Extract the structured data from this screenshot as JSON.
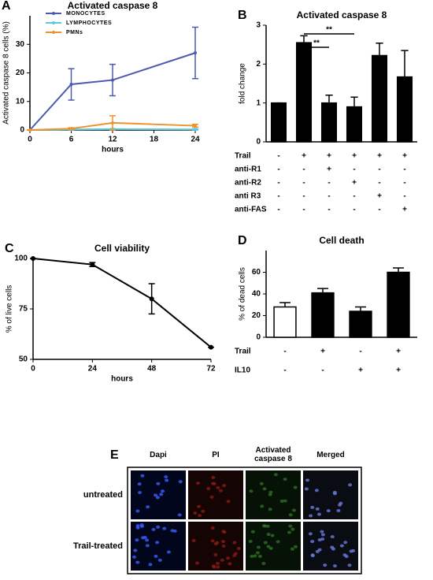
{
  "chart_data": [
    {
      "type": "line",
      "panel": "A",
      "title": "Activated caspase 8",
      "xlabel": "hours",
      "ylabel": "Activated caspase 8 cells (%)",
      "x": [
        0,
        6,
        12,
        24
      ],
      "xlim": [
        0,
        24
      ],
      "xticks": [
        0,
        6,
        12,
        18,
        24
      ],
      "ylim": [
        0,
        40
      ],
      "yticks": [
        0,
        10,
        20,
        30
      ],
      "series": [
        {
          "name": "MONOCYTES",
          "color": "#4a5ab0",
          "values": [
            0,
            16,
            17.5,
            27
          ],
          "errors": [
            0,
            5.5,
            5.5,
            9
          ]
        },
        {
          "name": "LYMPHOCYTES",
          "color": "#5bc8e0",
          "values": [
            0,
            0.2,
            0.3,
            0.2
          ],
          "errors": [
            0,
            0.2,
            0.2,
            0.2
          ]
        },
        {
          "name": "PMNs",
          "color": "#f0922a",
          "values": [
            0,
            0.5,
            2.5,
            1.5
          ],
          "errors": [
            0,
            0.3,
            2.5,
            0.5
          ]
        }
      ]
    },
    {
      "type": "bar",
      "panel": "B",
      "title": "Activated caspase 8",
      "ylabel": "fold change",
      "values": [
        1,
        2.55,
        1.0,
        0.9,
        2.22,
        1.67
      ],
      "errors": [
        0,
        0.18,
        0.2,
        0.25,
        0.32,
        0.68
      ],
      "color": "#000000",
      "ylim": [
        0,
        3
      ],
      "yticks": [
        0,
        1,
        2,
        3
      ],
      "significance": [
        {
          "label": "**",
          "categories": [
            1,
            2
          ]
        },
        {
          "label": "**",
          "categories": [
            1,
            3
          ]
        }
      ],
      "conditions": [
        {
          "name": "Trail",
          "values": [
            "-",
            "+",
            "+",
            "+",
            "+",
            "+"
          ]
        },
        {
          "name": "anti-R1",
          "values": [
            "-",
            "-",
            "+",
            "-",
            "-",
            "-"
          ]
        },
        {
          "name": "anti-R2",
          "values": [
            "-",
            "-",
            "-",
            "+",
            "-",
            "-"
          ]
        },
        {
          "name": "anti R3",
          "values": [
            "-",
            "-",
            "-",
            "-",
            "+",
            "-"
          ]
        },
        {
          "name": "anti-FAS",
          "values": [
            "-",
            "-",
            "-",
            "-",
            "-",
            "+"
          ]
        }
      ]
    },
    {
      "type": "line",
      "panel": "C",
      "title": "Cell viability",
      "xlabel": "hours",
      "ylabel": "% of live cells",
      "x": [
        0,
        24,
        48,
        72
      ],
      "xlim": [
        0,
        72
      ],
      "xticks": [
        0,
        24,
        48,
        72
      ],
      "ylim": [
        50,
        100
      ],
      "yticks": [
        50,
        75,
        100
      ],
      "values": [
        100,
        97,
        80,
        56
      ],
      "errors": [
        0,
        1,
        7.5,
        0
      ],
      "color": "#000000"
    },
    {
      "type": "bar",
      "panel": "D",
      "title": "Cell death",
      "ylabel": "% of dead  cells",
      "values": [
        28,
        41,
        24,
        60
      ],
      "errors": [
        4,
        4,
        4,
        4
      ],
      "colors": [
        "#ffffff",
        "#000000",
        "#000000",
        "#000000"
      ],
      "ylim": [
        0,
        80
      ],
      "yticks": [
        0,
        20,
        40,
        60
      ],
      "conditions": [
        {
          "name": "Trail",
          "values": [
            "-",
            "+",
            "-",
            "+"
          ]
        },
        {
          "name": "IL10",
          "values": [
            "-",
            "-",
            "+",
            "+"
          ]
        }
      ]
    }
  ],
  "panel_e": {
    "panel": "E",
    "columns": [
      "Dapi",
      "PI",
      "Activated caspase 8",
      "Merged"
    ],
    "rows": [
      "untreated",
      "Trail-treated"
    ]
  }
}
